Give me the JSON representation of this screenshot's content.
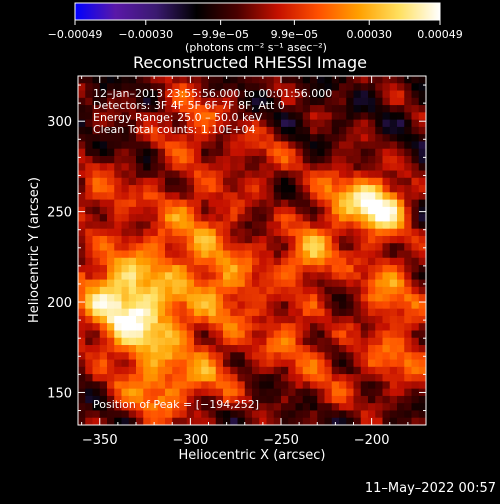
{
  "chart_data": {
    "type": "heatmap",
    "title": "Reconstructed RHESSI Image",
    "xlabel": "Heliocentric X (arcsec)",
    "ylabel": "Heliocentric Y (arcsec)",
    "xlim": [
      -362,
      -170
    ],
    "ylim": [
      132,
      325
    ],
    "x_ticks": [
      -350,
      -300,
      -250,
      -200
    ],
    "x_tick_labels": [
      "−350",
      "−300",
      "−250",
      "−200"
    ],
    "y_ticks": [
      150,
      200,
      250,
      300
    ],
    "y_tick_labels": [
      "150",
      "200",
      "250",
      "300"
    ],
    "colorbar": {
      "range": [
        -0.00049,
        0.00049
      ],
      "ticks": [
        -0.00049,
        -0.0003,
        -9.9e-05,
        9.9e-05,
        0.0003,
        0.00049
      ],
      "tick_labels": [
        "−0.00049",
        "−0.00030",
        "−9.9e−05",
        "9.9e−05",
        "0.00030",
        "0.00049"
      ],
      "units": "(photons cm⁻² s⁻¹ asec⁻²)"
    },
    "annotations": [
      "12–Jan–2013 23:55:56.000 to 00:01:56.000",
      "Detectors: 3F 4F 5F 6F 7F 8F, Att 0",
      "Energy Range: 25.0 – 50.0 keV",
      "Clean     Total counts: 1.10E+04"
    ],
    "peak_label": "Position of Peak = [−194,252]",
    "peak": [
      -194,
      252
    ],
    "colormap": [
      "#0000ff",
      "#5a18a8",
      "#3a1a70",
      "#000000",
      "#4a0000",
      "#c41000",
      "#ff5000",
      "#ffa000",
      "#ffe060",
      "#ffffff"
    ],
    "grid": false
  },
  "footer": {
    "timestamp": "11–May–2022 00:57"
  }
}
